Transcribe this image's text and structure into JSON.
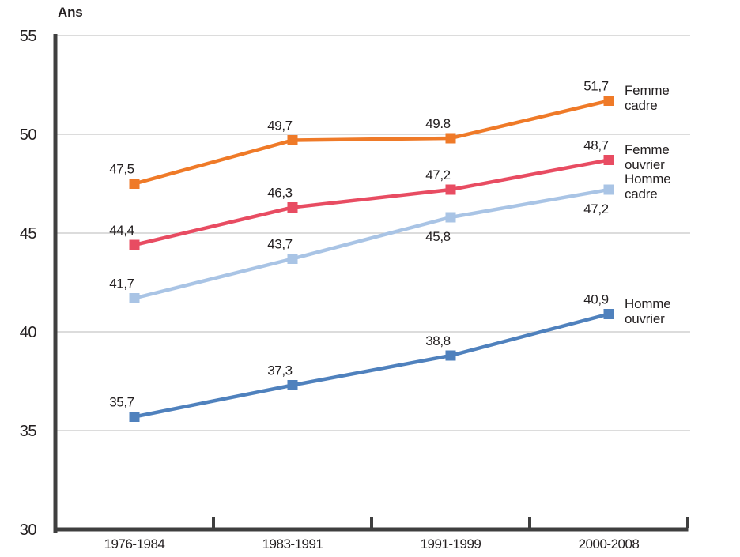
{
  "chart_data": {
    "type": "line",
    "axis_title": "Ans",
    "categories": [
      "1976-1984",
      "1983-1991",
      "1991-1999",
      "2000-2008"
    ],
    "ylim": [
      30,
      55
    ],
    "ytick_values": [
      55,
      50,
      45,
      40,
      35,
      30
    ],
    "ytick_labels": [
      "55",
      "50",
      "45",
      "40",
      "35",
      "30"
    ],
    "grid": "horizontal-light-gray",
    "legend_position": "right-of-last-point",
    "colors": {
      "axis": "#3F3F3F",
      "grid": "#C8C8C8",
      "text": "#231F20"
    },
    "series": [
      {
        "name": "Femme cadre",
        "legend_lines": [
          "Femme",
          "cadre"
        ],
        "color": "#EF7A28",
        "values": [
          47.5,
          49.7,
          49.8,
          51.7
        ],
        "labels": [
          "47,5",
          "49,7",
          "49.8",
          "51,7"
        ],
        "label_side": [
          "above",
          "above",
          "above",
          "above"
        ]
      },
      {
        "name": "Femme ouvrier",
        "legend_lines": [
          "Femme",
          "ouvrier"
        ],
        "color": "#E84C62",
        "values": [
          44.4,
          46.3,
          47.2,
          48.7
        ],
        "labels": [
          "44,4",
          "46,3",
          "47,2",
          "48,7"
        ],
        "label_side": [
          "above",
          "above",
          "above",
          "above"
        ]
      },
      {
        "name": "Homme cadre",
        "legend_lines": [
          "Homme",
          "cadre"
        ],
        "color": "#A9C4E5",
        "values": [
          41.7,
          43.7,
          45.8,
          47.2
        ],
        "labels": [
          "41,7",
          "43,7",
          "45,8",
          "47,2"
        ],
        "label_side": [
          "above",
          "above",
          "below",
          "below"
        ]
      },
      {
        "name": "Homme ouvrier",
        "legend_lines": [
          "Homme",
          "ouvrier"
        ],
        "color": "#4F81BD",
        "values": [
          35.7,
          37.3,
          38.8,
          40.9
        ],
        "labels": [
          "35,7",
          "37,3",
          "38,8",
          "40,9"
        ],
        "label_side": [
          "above",
          "above",
          "above",
          "above"
        ]
      }
    ]
  }
}
